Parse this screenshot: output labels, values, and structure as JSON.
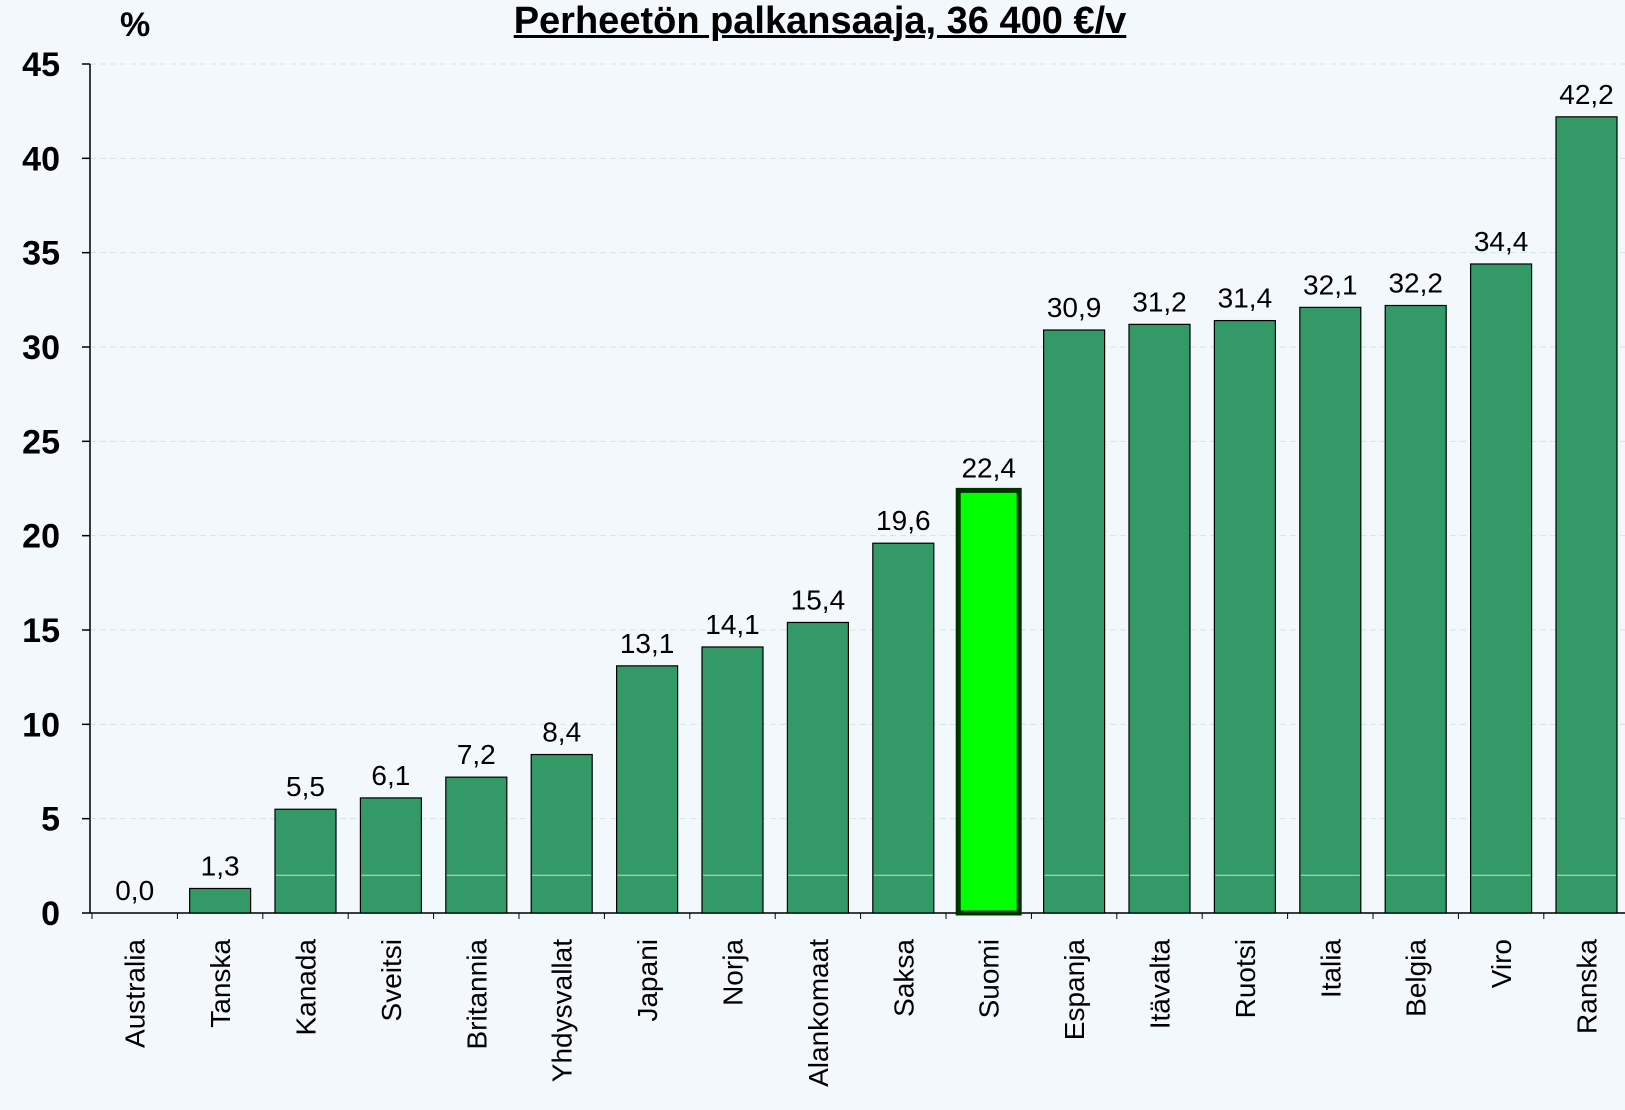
{
  "chart_data": {
    "type": "bar",
    "title": "Perheetön palkansaaja, 36 400 €/v",
    "ylabel": "%",
    "xlabel": "",
    "ylim": [
      0,
      45
    ],
    "yticks": [
      0,
      5,
      10,
      15,
      20,
      25,
      30,
      35,
      40,
      45
    ],
    "grid": true,
    "categories": [
      "Australia",
      "Tanska",
      "Kanada",
      "Sveitsi",
      "Britannia",
      "Yhdysvallat",
      "Japani",
      "Norja",
      "Alankomaat",
      "Saksa",
      "Suomi",
      "Espanja",
      "Itävalta",
      "Ruotsi",
      "Italia",
      "Belgia",
      "Viro",
      "Ranska"
    ],
    "values": [
      0.0,
      1.3,
      5.5,
      6.1,
      7.2,
      8.4,
      13.1,
      14.1,
      15.4,
      19.6,
      22.4,
      30.9,
      31.2,
      31.4,
      32.1,
      32.2,
      34.4,
      42.2
    ],
    "value_labels": [
      "0,0",
      "1,3",
      "5,5",
      "6,1",
      "7,2",
      "8,4",
      "13,1",
      "14,1",
      "15,4",
      "19,6",
      "22,4",
      "30,9",
      "31,2",
      "31,4",
      "32,1",
      "32,2",
      "34,4",
      "42,2"
    ],
    "highlight_category": "Suomi",
    "colors": {
      "bar": "#339966",
      "highlight": "#00ff00",
      "highlight_border": "#003300",
      "background": "#f2f8fb",
      "grid": "#d0e6e6"
    }
  }
}
